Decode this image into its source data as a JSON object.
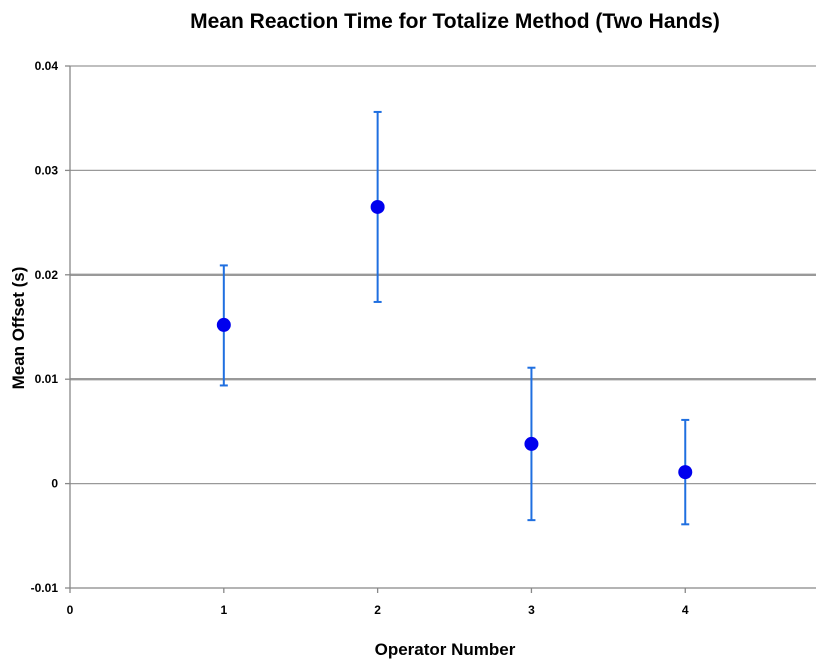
{
  "chart_data": {
    "type": "scatter",
    "title": "Mean Reaction Time for Totalize Method (Two Hands)",
    "xlabel": "Operator Number",
    "ylabel": "Mean Offset (s)",
    "xlim": [
      0,
      4.85
    ],
    "ylim": [
      -0.01,
      0.04
    ],
    "x_ticks": [
      0,
      1,
      2,
      3,
      4
    ],
    "x_tick_labels": [
      "0",
      "1",
      "2",
      "3",
      "4"
    ],
    "y_ticks": [
      -0.01,
      0,
      0.01,
      0.02,
      0.03,
      0.04
    ],
    "y_tick_labels": [
      "-0.01",
      "0",
      "0.01",
      "0.02",
      "0.03",
      "0.04"
    ],
    "grid": "horizontal",
    "legend": "none",
    "colors": {
      "point": "#0000ee",
      "error_bar": "#1f6fe0",
      "grid": "#999999",
      "axis": "#888888"
    },
    "series": [
      {
        "x": [
          1,
          2,
          3,
          4
        ],
        "y": [
          0.0152,
          0.0265,
          0.0038,
          0.0011
        ],
        "y_low": [
          0.0094,
          0.0174,
          -0.0035,
          -0.0039
        ],
        "y_high": [
          0.0209,
          0.0356,
          0.0111,
          0.0061
        ]
      }
    ]
  }
}
